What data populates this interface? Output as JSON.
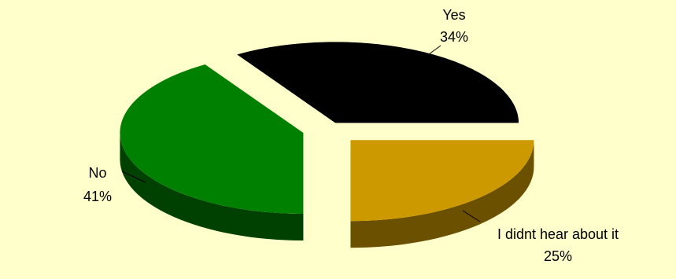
{
  "chart_data": {
    "type": "pie",
    "title": "",
    "exploded": true,
    "three_d": true,
    "slices": [
      {
        "name": "Yes",
        "value": 34,
        "label": "34%",
        "color": "#000000",
        "side_color": "#000000"
      },
      {
        "name": "I didnt hear about it",
        "value": 25,
        "label": "25%",
        "color": "#cc9900",
        "side_color": "#6b5000"
      },
      {
        "name": "No",
        "value": 41,
        "label": "41%",
        "color": "#008000",
        "side_color": "#004000"
      }
    ],
    "background": "#ffffcc"
  }
}
